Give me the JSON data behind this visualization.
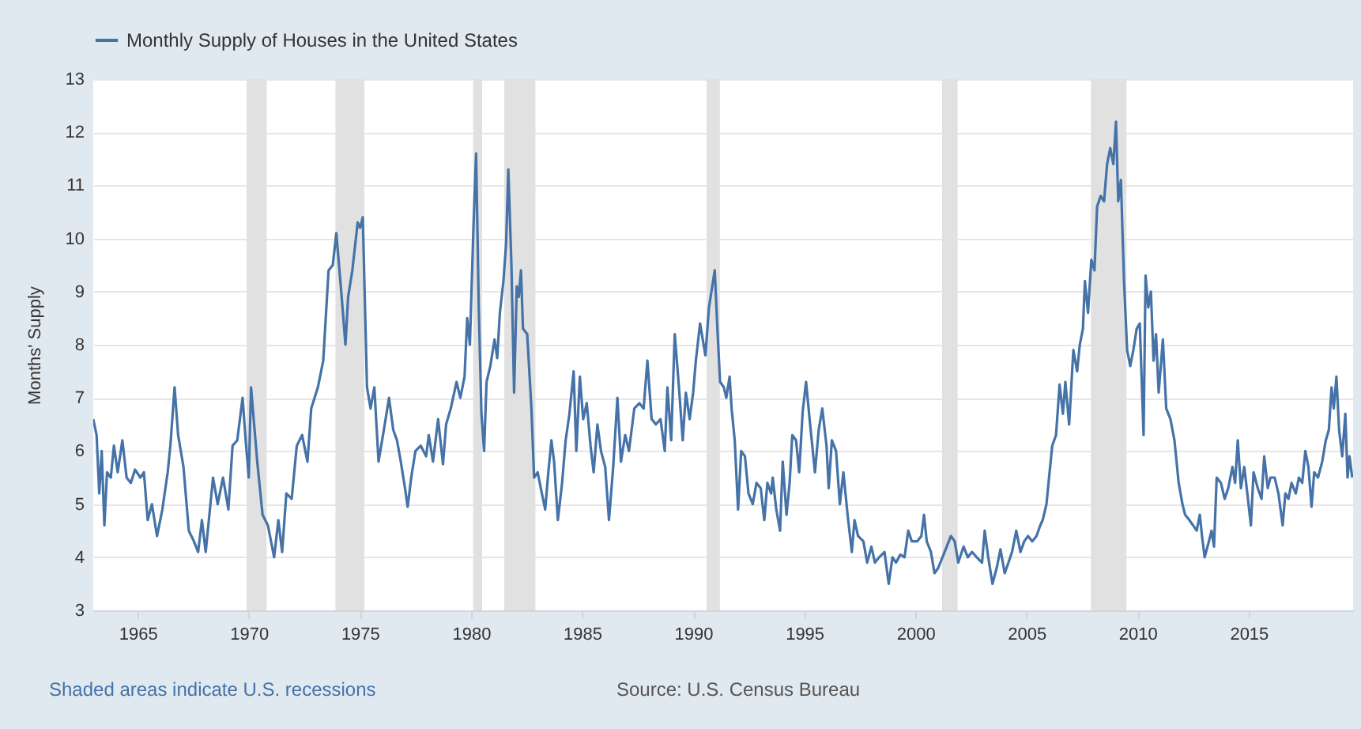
{
  "chart_data": {
    "type": "line",
    "ylabel": "Months' Supply",
    "annotations": [
      "Shaded areas indicate U.S. recessions",
      "Source: U.S. Census Bureau"
    ],
    "xlim": [
      1963,
      2019.7
    ],
    "xticks": [
      1965,
      1970,
      1975,
      1980,
      1985,
      1990,
      1995,
      2000,
      2005,
      2010,
      2015
    ],
    "ylim": [
      3,
      13
    ],
    "yticks": [
      3,
      4,
      5,
      6,
      7,
      8,
      9,
      10,
      11,
      12,
      13
    ],
    "grid": "y",
    "legend": "top",
    "line_style": "solid",
    "bands": [
      {
        "axis": "x",
        "from": 1969.9,
        "to": 1970.8,
        "color": "#e1e1e1"
      },
      {
        "axis": "x",
        "from": 1973.9,
        "to": 1975.2,
        "color": "#e1e1e1"
      },
      {
        "axis": "x",
        "from": 1980.1,
        "to": 1980.5,
        "color": "#e1e1e1"
      },
      {
        "axis": "x",
        "from": 1981.5,
        "to": 1982.9,
        "color": "#e1e1e1"
      },
      {
        "axis": "x",
        "from": 1990.6,
        "to": 1991.2,
        "color": "#e1e1e1"
      },
      {
        "axis": "x",
        "from": 2001.2,
        "to": 2001.9,
        "color": "#e1e1e1"
      },
      {
        "axis": "x",
        "from": 2007.9,
        "to": 2009.5,
        "color": "#e1e1e1"
      }
    ],
    "series": [
      {
        "name": "Monthly Supply of Houses in the United States",
        "color": "#4572a7",
        "x": [
          1963.0,
          1963.15,
          1963.27,
          1963.38,
          1963.5,
          1963.62,
          1963.79,
          1963.93,
          1964.1,
          1964.31,
          1964.5,
          1964.69,
          1964.88,
          1965.12,
          1965.28,
          1965.45,
          1965.64,
          1965.87,
          1966.11,
          1966.35,
          1966.47,
          1966.66,
          1966.82,
          1967.06,
          1967.3,
          1967.53,
          1967.72,
          1967.89,
          1968.06,
          1968.25,
          1968.39,
          1968.6,
          1968.84,
          1969.08,
          1969.27,
          1969.48,
          1969.72,
          1969.86,
          1970.0,
          1970.1,
          1970.38,
          1970.62,
          1970.86,
          1971.14,
          1971.33,
          1971.5,
          1971.69,
          1971.93,
          1972.16,
          1972.4,
          1972.64,
          1972.81,
          1973.11,
          1973.35,
          1973.59,
          1973.78,
          1973.94,
          1974.18,
          1974.35,
          1974.47,
          1974.66,
          1974.9,
          1975.01,
          1975.13,
          1975.32,
          1975.48,
          1975.65,
          1975.84,
          1976.08,
          1976.31,
          1976.5,
          1976.67,
          1976.84,
          1977.03,
          1977.15,
          1977.31,
          1977.5,
          1977.74,
          1977.98,
          1978.1,
          1978.29,
          1978.52,
          1978.74,
          1978.88,
          1979.09,
          1979.35,
          1979.52,
          1979.71,
          1979.83,
          1979.95,
          1980.11,
          1980.23,
          1980.35,
          1980.47,
          1980.59,
          1980.7,
          1980.87,
          1981.06,
          1981.18,
          1981.3,
          1981.46,
          1981.58,
          1981.68,
          1981.82,
          1981.94,
          1982.06,
          1982.15,
          1982.25,
          1982.34,
          1982.53,
          1982.72,
          1982.84,
          1983.0,
          1983.19,
          1983.34,
          1983.48,
          1983.62,
          1983.74,
          1983.91,
          1984.1,
          1984.26,
          1984.43,
          1984.62,
          1984.74,
          1984.9,
          1985.05,
          1985.21,
          1985.38,
          1985.52,
          1985.69,
          1985.85,
          1986.04,
          1986.21,
          1986.4,
          1986.59,
          1986.75,
          1986.94,
          1987.11,
          1987.35,
          1987.58,
          1987.77,
          1987.94,
          1988.13,
          1988.32,
          1988.53,
          1988.72,
          1988.84,
          1989.01,
          1989.17,
          1989.36,
          1989.53,
          1989.67,
          1989.84,
          1990.0,
          1990.12,
          1990.31,
          1990.55,
          1990.71,
          1990.97,
          1991.09,
          1991.21,
          1991.38,
          1991.49,
          1991.64,
          1991.73,
          1991.87,
          1992.02,
          1992.16,
          1992.33,
          1992.49,
          1992.68,
          1992.85,
          1993.04,
          1993.2,
          1993.34,
          1993.51,
          1993.58,
          1993.74,
          1993.91,
          1994.03,
          1994.2,
          1994.34,
          1994.46,
          1994.63,
          1994.77,
          1994.93,
          1995.08,
          1995.24,
          1995.48,
          1995.65,
          1995.81,
          1996.0,
          1996.1,
          1996.24,
          1996.43,
          1996.6,
          1996.76,
          1996.95,
          1997.14,
          1997.26,
          1997.42,
          1997.66,
          1997.83,
          1998.02,
          1998.18,
          1998.37,
          1998.61,
          1998.8,
          1998.97,
          1999.13,
          1999.32,
          1999.51,
          1999.68,
          1999.84,
          2000.08,
          2000.27,
          2000.39,
          2000.51,
          2000.7,
          2000.86,
          2001.03,
          2001.22,
          2001.41,
          2001.6,
          2001.77,
          2001.93,
          2002.17,
          2002.36,
          2002.55,
          2002.76,
          2003.0,
          2003.12,
          2003.28,
          2003.47,
          2003.66,
          2003.83,
          2004.02,
          2004.19,
          2004.35,
          2004.54,
          2004.73,
          2004.9,
          2005.07,
          2005.26,
          2005.45,
          2005.62,
          2005.73,
          2005.9,
          2006.04,
          2006.16,
          2006.33,
          2006.49,
          2006.64,
          2006.75,
          2006.92,
          2007.11,
          2007.28,
          2007.4,
          2007.54,
          2007.63,
          2007.77,
          2007.92,
          2008.06,
          2008.18,
          2008.34,
          2008.49,
          2008.63,
          2008.77,
          2008.91,
          2009.03,
          2009.13,
          2009.25,
          2009.39,
          2009.53,
          2009.67,
          2009.81,
          2009.96,
          2010.1,
          2010.27,
          2010.36,
          2010.48,
          2010.6,
          2010.72,
          2010.83,
          2010.95,
          2011.14,
          2011.29,
          2011.48,
          2011.66,
          2011.85,
          2012.02,
          2012.14,
          2012.33,
          2012.5,
          2012.66,
          2012.8,
          2012.9,
          2013.02,
          2013.21,
          2013.33,
          2013.44,
          2013.56,
          2013.75,
          2013.92,
          2014.08,
          2014.27,
          2014.39,
          2014.51,
          2014.65,
          2014.8,
          2014.94,
          2015.1,
          2015.22,
          2015.41,
          2015.58,
          2015.7,
          2015.86,
          2015.98,
          2016.17,
          2016.34,
          2016.53,
          2016.65,
          2016.79,
          2016.93,
          2017.12,
          2017.26,
          2017.41,
          2017.55,
          2017.69,
          2017.83,
          2017.95,
          2018.12,
          2018.31,
          2018.47,
          2018.61,
          2018.73,
          2018.83,
          2018.95,
          2019.07,
          2019.21,
          2019.35,
          2019.45,
          2019.54,
          2019.66
        ],
        "values": [
          6.6,
          6.3,
          5.2,
          6.0,
          4.6,
          5.6,
          5.5,
          6.1,
          5.6,
          6.2,
          5.5,
          5.4,
          5.65,
          5.5,
          5.6,
          4.7,
          5.0,
          4.4,
          4.9,
          5.6,
          6.1,
          7.2,
          6.3,
          5.7,
          4.5,
          4.3,
          4.1,
          4.7,
          4.1,
          4.9,
          5.5,
          5.0,
          5.5,
          4.9,
          6.1,
          6.2,
          7.0,
          6.2,
          5.5,
          7.2,
          5.8,
          4.8,
          4.6,
          4.0,
          4.7,
          4.1,
          5.2,
          5.1,
          6.1,
          6.3,
          5.8,
          6.8,
          7.2,
          7.7,
          9.4,
          9.5,
          10.1,
          8.9,
          8.0,
          8.9,
          9.4,
          10.3,
          10.2,
          10.4,
          7.2,
          6.8,
          7.2,
          5.8,
          6.4,
          7.0,
          6.4,
          6.2,
          5.8,
          5.3,
          4.95,
          5.5,
          6.0,
          6.1,
          5.9,
          6.3,
          5.8,
          6.6,
          5.75,
          6.5,
          6.8,
          7.3,
          7.0,
          7.4,
          8.5,
          8.0,
          10.2,
          11.6,
          8.7,
          6.7,
          6.0,
          7.3,
          7.6,
          8.1,
          7.75,
          8.6,
          9.2,
          9.9,
          11.3,
          9.5,
          7.1,
          9.1,
          8.9,
          9.4,
          8.3,
          8.2,
          6.8,
          5.5,
          5.6,
          5.2,
          4.9,
          5.6,
          6.2,
          5.8,
          4.7,
          5.4,
          6.2,
          6.7,
          7.5,
          6.0,
          7.4,
          6.6,
          6.9,
          6.1,
          5.6,
          6.5,
          6.0,
          5.7,
          4.7,
          5.7,
          7.0,
          5.8,
          6.3,
          6.0,
          6.8,
          6.9,
          6.8,
          7.7,
          6.6,
          6.5,
          6.6,
          6.0,
          7.2,
          6.2,
          8.2,
          7.2,
          6.2,
          7.1,
          6.6,
          7.1,
          7.7,
          8.4,
          7.8,
          8.7,
          9.4,
          8.3,
          7.3,
          7.2,
          7.0,
          7.4,
          6.8,
          6.2,
          4.9,
          6.0,
          5.9,
          5.2,
          5.0,
          5.4,
          5.3,
          4.7,
          5.4,
          5.2,
          5.5,
          4.9,
          4.5,
          5.8,
          4.8,
          5.4,
          6.3,
          6.2,
          5.6,
          6.75,
          7.3,
          6.6,
          5.6,
          6.4,
          6.8,
          6.1,
          5.3,
          6.2,
          6.0,
          5.0,
          5.6,
          4.8,
          4.1,
          4.7,
          4.4,
          4.3,
          3.9,
          4.2,
          3.9,
          4.0,
          4.1,
          3.5,
          4.0,
          3.9,
          4.05,
          4.0,
          4.5,
          4.3,
          4.3,
          4.4,
          4.8,
          4.3,
          4.1,
          3.7,
          3.8,
          4.0,
          4.2,
          4.4,
          4.3,
          3.9,
          4.2,
          4.0,
          4.1,
          4.0,
          3.9,
          4.5,
          4.0,
          3.5,
          3.8,
          4.15,
          3.7,
          3.9,
          4.1,
          4.5,
          4.1,
          4.3,
          4.4,
          4.3,
          4.4,
          4.6,
          4.7,
          5.0,
          5.6,
          6.1,
          6.3,
          7.25,
          6.7,
          7.3,
          6.5,
          7.9,
          7.5,
          8.0,
          8.3,
          9.2,
          8.6,
          9.6,
          9.4,
          10.6,
          10.8,
          10.7,
          11.4,
          11.7,
          11.4,
          12.2,
          10.7,
          11.1,
          9.2,
          7.9,
          7.6,
          7.9,
          8.3,
          8.4,
          6.3,
          9.3,
          8.7,
          9.0,
          7.7,
          8.2,
          7.1,
          8.1,
          6.8,
          6.6,
          6.2,
          5.4,
          5.0,
          4.8,
          4.7,
          4.6,
          4.5,
          4.8,
          4.4,
          4.0,
          4.3,
          4.5,
          4.2,
          5.5,
          5.4,
          5.1,
          5.3,
          5.7,
          5.4,
          6.2,
          5.3,
          5.7,
          5.2,
          4.6,
          5.6,
          5.3,
          5.1,
          5.9,
          5.3,
          5.5,
          5.5,
          5.2,
          4.6,
          5.2,
          5.1,
          5.4,
          5.2,
          5.5,
          5.4,
          6.0,
          5.7,
          4.95,
          5.6,
          5.5,
          5.8,
          6.2,
          6.4,
          7.2,
          6.8,
          7.4,
          6.4,
          5.9,
          6.7,
          5.5,
          5.9,
          5.5
        ]
      }
    ]
  }
}
